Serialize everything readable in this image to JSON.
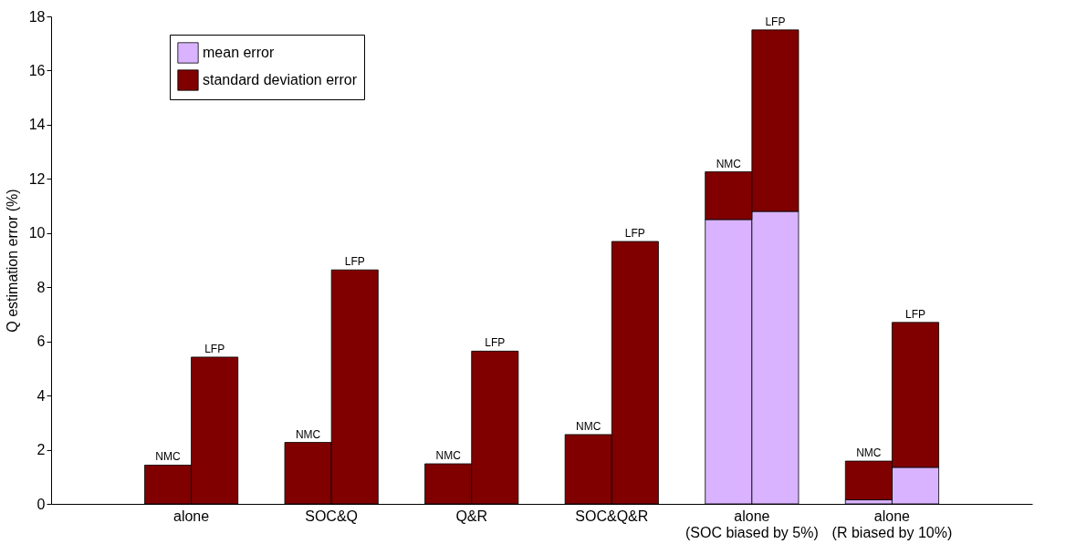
{
  "chart_data": {
    "type": "bar",
    "stacked": true,
    "ylabel": "Q estimation error (%)",
    "categories": [
      "NMC",
      "LFP",
      "NMC",
      "LFP",
      "NMC",
      "LFP",
      "NMC",
      "LFP",
      "NMC",
      "LFP",
      "NMC",
      "LFP"
    ],
    "annotations": [
      "alone",
      "SOC&Q",
      "Q&R",
      "SOC&Q&R",
      "alone\n(SOC biased by 5%)",
      "alone\n(R biased by 10%)"
    ],
    "series": [
      {
        "name": "mean error",
        "color": "#d9b3ff",
        "values": [
          0,
          0,
          0,
          0,
          0,
          0,
          0,
          0,
          10.5,
          10.8,
          0.15,
          1.35
        ]
      },
      {
        "name": "standard deviation error",
        "color": "#800000",
        "values": [
          1.43,
          5.42,
          2.27,
          8.64,
          1.48,
          5.64,
          2.56,
          9.69,
          1.76,
          6.7,
          1.43,
          5.35
        ]
      }
    ],
    "ylim": [
      0,
      18
    ],
    "yticks": [
      0,
      2,
      4,
      6,
      8,
      10,
      12,
      14,
      16,
      18
    ],
    "grid": false,
    "legend": "top left"
  }
}
